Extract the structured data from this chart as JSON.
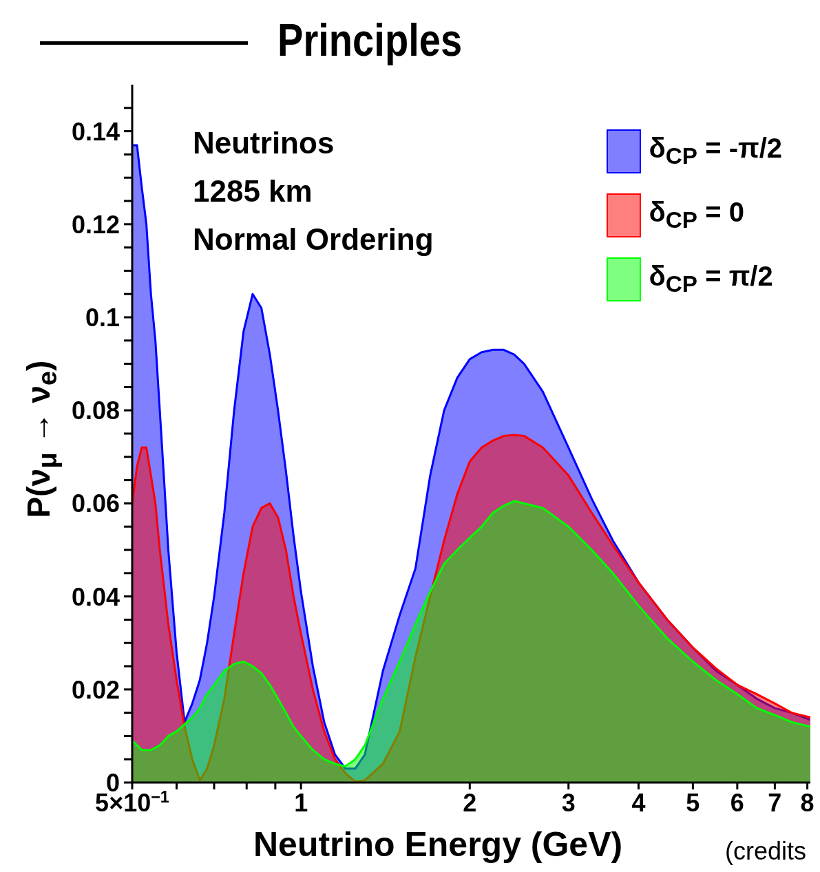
{
  "chart_data": {
    "type": "area",
    "title": "Principles",
    "xlabel": "Neutrino Energy (GeV)",
    "ylabel": "P(ν$_{μ}$ → ν$_{e}$)",
    "annotations": [
      "Neutrinos",
      "1285 km",
      "Normal Ordering",
      "(credits"
    ],
    "x": [
      0.5,
      0.51,
      0.52,
      0.53,
      0.54,
      0.55,
      0.56,
      0.57,
      0.58,
      0.6,
      0.62,
      0.64,
      0.66,
      0.68,
      0.7,
      0.73,
      0.76,
      0.79,
      0.82,
      0.85,
      0.88,
      0.91,
      0.94,
      0.97,
      1.0,
      1.05,
      1.1,
      1.15,
      1.2,
      1.25,
      1.3,
      1.4,
      1.5,
      1.6,
      1.7,
      1.8,
      1.9,
      2.0,
      2.1,
      2.2,
      2.3,
      2.4,
      2.5,
      2.7,
      3.0,
      3.3,
      3.6,
      4.0,
      4.5,
      5.0,
      5.5,
      6.0,
      6.5,
      7.0,
      7.5,
      8.1
    ],
    "series": [
      {
        "name": "δ$_{CP}$ = -π/2",
        "color": "#0000ff",
        "values": [
          0.137,
          0.137,
          0.128,
          0.12,
          0.105,
          0.095,
          0.08,
          0.065,
          0.05,
          0.028,
          0.013,
          0.017,
          0.022,
          0.03,
          0.04,
          0.058,
          0.08,
          0.097,
          0.105,
          0.102,
          0.092,
          0.08,
          0.067,
          0.053,
          0.041,
          0.025,
          0.013,
          0.006,
          0.003,
          0.003,
          0.006,
          0.024,
          0.036,
          0.046,
          0.066,
          0.08,
          0.087,
          0.091,
          0.0925,
          0.093,
          0.093,
          0.092,
          0.09,
          0.084,
          0.072,
          0.061,
          0.052,
          0.043,
          0.035,
          0.029,
          0.024,
          0.021,
          0.018,
          0.016,
          0.015,
          0.0135
        ]
      },
      {
        "name": "δ$_{CP}$ = 0",
        "color": "#ff0000",
        "values": [
          0.06,
          0.068,
          0.072,
          0.072,
          0.066,
          0.06,
          0.05,
          0.042,
          0.034,
          0.022,
          0.012,
          0.005,
          0.0005,
          0.003,
          0.008,
          0.018,
          0.032,
          0.045,
          0.055,
          0.059,
          0.06,
          0.057,
          0.05,
          0.04,
          0.032,
          0.02,
          0.011,
          0.005,
          0.002,
          0.0002,
          0.0005,
          0.004,
          0.011,
          0.027,
          0.04,
          0.052,
          0.062,
          0.069,
          0.072,
          0.0735,
          0.0745,
          0.0747,
          0.0745,
          0.072,
          0.066,
          0.058,
          0.051,
          0.043,
          0.035,
          0.029,
          0.0245,
          0.021,
          0.019,
          0.017,
          0.015,
          0.014
        ]
      },
      {
        "name": "δ$_{CP}$ = π/2",
        "color": "#00ff00",
        "values": [
          0.009,
          0.008,
          0.007,
          0.007,
          0.007,
          0.0075,
          0.008,
          0.009,
          0.01,
          0.011,
          0.0125,
          0.014,
          0.016,
          0.019,
          0.021,
          0.024,
          0.0255,
          0.026,
          0.025,
          0.0235,
          0.021,
          0.018,
          0.015,
          0.012,
          0.01,
          0.007,
          0.005,
          0.004,
          0.0035,
          0.005,
          0.008,
          0.018,
          0.026,
          0.034,
          0.041,
          0.047,
          0.05,
          0.0526,
          0.055,
          0.058,
          0.0595,
          0.0605,
          0.06,
          0.059,
          0.055,
          0.05,
          0.045,
          0.038,
          0.031,
          0.026,
          0.022,
          0.019,
          0.016,
          0.0145,
          0.013,
          0.012
        ]
      }
    ],
    "log": "x",
    "xlim": [
      0.5,
      8.1
    ],
    "xticks": [
      {
        "value": 0.5,
        "label": "5×10$^{−1}$"
      },
      {
        "value": 0.6,
        "label": null
      },
      {
        "value": 0.7,
        "label": null
      },
      {
        "value": 0.8,
        "label": null
      },
      {
        "value": 0.9,
        "label": null
      },
      1,
      2,
      3,
      4,
      5,
      6,
      7,
      8
    ],
    "ylim": [
      0,
      0.15
    ],
    "yticks": [
      0,
      {
        "value": 0.005,
        "label": null
      },
      {
        "value": 0.01,
        "label": null
      },
      {
        "value": 0.015,
        "label": null
      },
      0.02,
      {
        "value": 0.025,
        "label": null
      },
      {
        "value": 0.03,
        "label": null
      },
      {
        "value": 0.035,
        "label": null
      },
      0.04,
      {
        "value": 0.045,
        "label": null
      },
      {
        "value": 0.05,
        "label": null
      },
      {
        "value": 0.055,
        "label": null
      },
      0.06,
      {
        "value": 0.065,
        "label": null
      },
      {
        "value": 0.07,
        "label": null
      },
      {
        "value": 0.075,
        "label": null
      },
      0.08,
      {
        "value": 0.085,
        "label": null
      },
      {
        "value": 0.09,
        "label": null
      },
      {
        "value": 0.095,
        "label": null
      },
      0.1,
      {
        "value": 0.105,
        "label": null
      },
      {
        "value": 0.11,
        "label": null
      },
      {
        "value": 0.115,
        "label": null
      },
      0.12,
      {
        "value": 0.125,
        "label": null
      },
      {
        "value": 0.13,
        "label": null
      },
      {
        "value": 0.135,
        "label": null
      },
      0.14,
      {
        "value": 0.145,
        "label": null
      }
    ],
    "legend": "top right"
  }
}
